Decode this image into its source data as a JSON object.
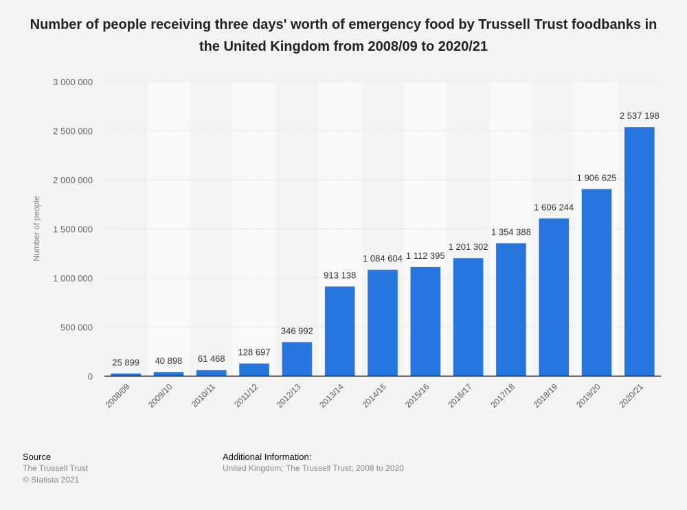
{
  "chart_data": {
    "type": "bar",
    "title": "Number of people receiving three days' worth of emergency food by Trussell Trust foodbanks in the United Kingdom from 2008/09 to 2020/21",
    "ylabel": "Number of people",
    "xlabel": "",
    "categories": [
      "2008/09",
      "2009/10",
      "2010/11",
      "2011/12",
      "2012/13",
      "2013/14",
      "2014/15",
      "2015/16",
      "2016/17",
      "2017/18",
      "2018/19",
      "2019/20",
      "2020/21"
    ],
    "values": [
      25899,
      40898,
      61468,
      128697,
      346992,
      913138,
      1084604,
      1112395,
      1201302,
      1354388,
      1606244,
      1906625,
      2537198
    ],
    "value_labels": [
      "25 899",
      "40 898",
      "61 468",
      "128 697",
      "346 992",
      "913 138",
      "1 084 604",
      "1 112 395",
      "1 201 302",
      "1 354 388",
      "1 606 244",
      "1 906 625",
      "2 537 198"
    ],
    "ylim": [
      0,
      3000000
    ],
    "yticks": [
      0,
      500000,
      1000000,
      1500000,
      2000000,
      2500000,
      3000000
    ],
    "ytick_labels": [
      "0",
      "500 000",
      "1 000 000",
      "1 500 000",
      "2 000 000",
      "2 500 000",
      "3 000 000"
    ],
    "grid": true,
    "bar_color": "#2876dd"
  },
  "footer": {
    "source_heading": "Source",
    "source_text": "The Trussell Trust",
    "copyright": "© Statista 2021",
    "info_heading": "Additional Information:",
    "info_text": "United Kingdom; The Trussell Trust; 2008 to 2020"
  }
}
